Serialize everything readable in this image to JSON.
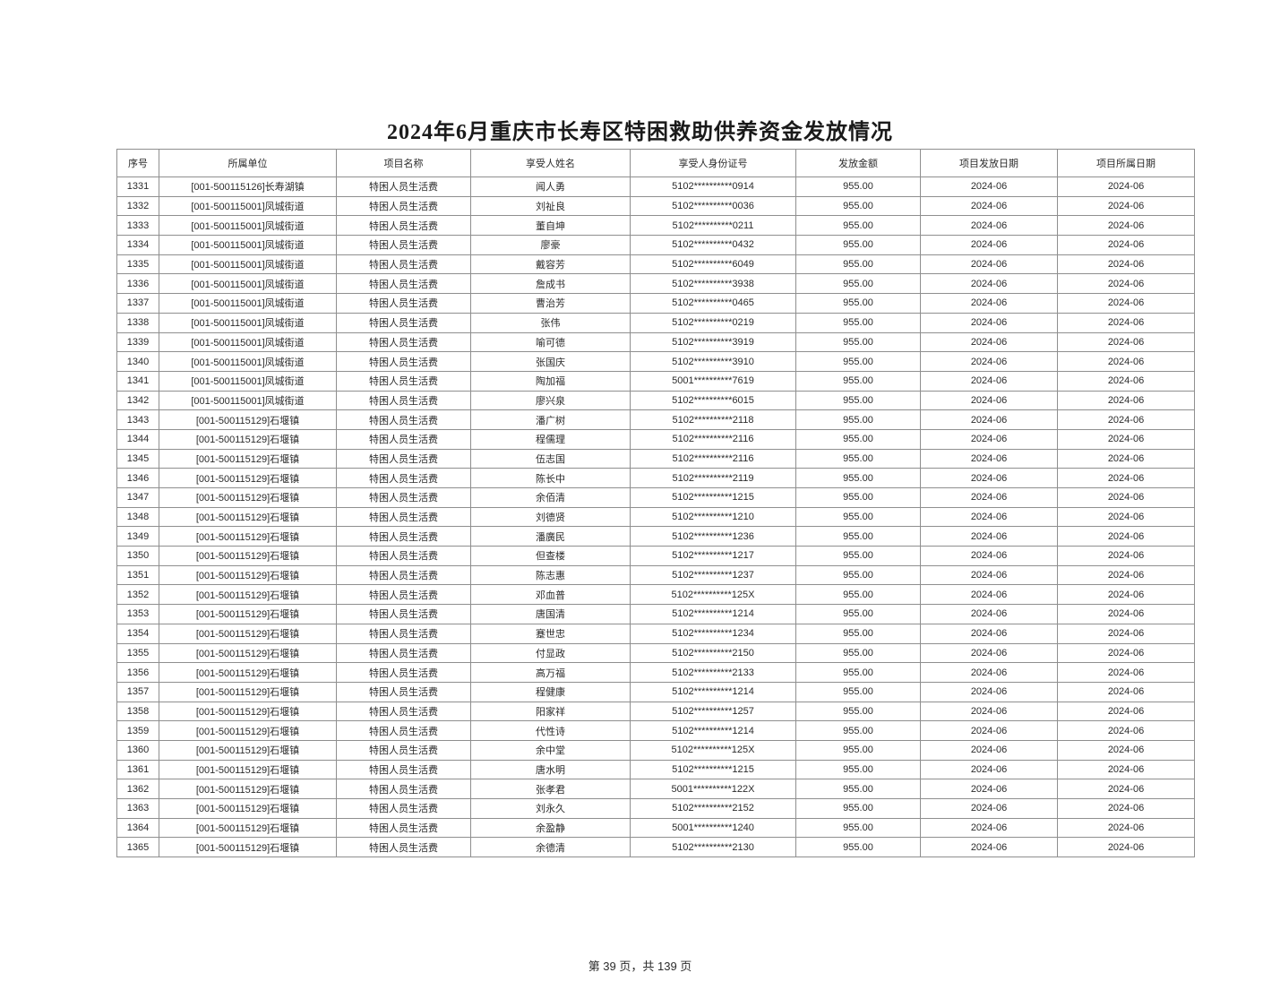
{
  "page": {
    "title": "2024年6月重庆市长寿区特困救助供养资金发放情况",
    "footer": "第 39 页，共 139 页"
  },
  "table": {
    "column_keys": [
      "index",
      "unit",
      "project",
      "name",
      "id",
      "amount",
      "issue",
      "period"
    ],
    "headers": [
      "序号",
      "所属单位",
      "项目名称",
      "享受人姓名",
      "享受人身份证号",
      "发放金额",
      "项目发放日期",
      "项目所属日期"
    ],
    "rows": [
      [
        "1331",
        "[001-500115126]长寿湖镇",
        "特困人员生活费",
        "闻人勇",
        "5102**********0914",
        "955.00",
        "2024-06",
        "2024-06"
      ],
      [
        "1332",
        "[001-500115001]凤城街道",
        "特困人员生活费",
        "刘祉良",
        "5102**********0036",
        "955.00",
        "2024-06",
        "2024-06"
      ],
      [
        "1333",
        "[001-500115001]凤城街道",
        "特困人员生活费",
        "董自坤",
        "5102**********0211",
        "955.00",
        "2024-06",
        "2024-06"
      ],
      [
        "1334",
        "[001-500115001]凤城街道",
        "特困人员生活费",
        "廖豪",
        "5102**********0432",
        "955.00",
        "2024-06",
        "2024-06"
      ],
      [
        "1335",
        "[001-500115001]凤城街道",
        "特困人员生活费",
        "戴容芳",
        "5102**********6049",
        "955.00",
        "2024-06",
        "2024-06"
      ],
      [
        "1336",
        "[001-500115001]凤城街道",
        "特困人员生活费",
        "詹成书",
        "5102**********3938",
        "955.00",
        "2024-06",
        "2024-06"
      ],
      [
        "1337",
        "[001-500115001]凤城街道",
        "特困人员生活费",
        "曹治芳",
        "5102**********0465",
        "955.00",
        "2024-06",
        "2024-06"
      ],
      [
        "1338",
        "[001-500115001]凤城街道",
        "特困人员生活费",
        "张伟",
        "5102**********0219",
        "955.00",
        "2024-06",
        "2024-06"
      ],
      [
        "1339",
        "[001-500115001]凤城街道",
        "特困人员生活费",
        "喻可德",
        "5102**********3919",
        "955.00",
        "2024-06",
        "2024-06"
      ],
      [
        "1340",
        "[001-500115001]凤城街道",
        "特困人员生活费",
        "张国庆",
        "5102**********3910",
        "955.00",
        "2024-06",
        "2024-06"
      ],
      [
        "1341",
        "[001-500115001]凤城街道",
        "特困人员生活费",
        "陶加福",
        "5001**********7619",
        "955.00",
        "2024-06",
        "2024-06"
      ],
      [
        "1342",
        "[001-500115001]凤城街道",
        "特困人员生活费",
        "廖兴泉",
        "5102**********6015",
        "955.00",
        "2024-06",
        "2024-06"
      ],
      [
        "1343",
        "[001-500115129]石堰镇",
        "特困人员生活费",
        "潘广树",
        "5102**********2118",
        "955.00",
        "2024-06",
        "2024-06"
      ],
      [
        "1344",
        "[001-500115129]石堰镇",
        "特困人员生活费",
        "程儒理",
        "5102**********2116",
        "955.00",
        "2024-06",
        "2024-06"
      ],
      [
        "1345",
        "[001-500115129]石堰镇",
        "特困人员生活费",
        "伍志国",
        "5102**********2116",
        "955.00",
        "2024-06",
        "2024-06"
      ],
      [
        "1346",
        "[001-500115129]石堰镇",
        "特困人员生活费",
        "陈长中",
        "5102**********2119",
        "955.00",
        "2024-06",
        "2024-06"
      ],
      [
        "1347",
        "[001-500115129]石堰镇",
        "特困人员生活费",
        "余佰清",
        "5102**********1215",
        "955.00",
        "2024-06",
        "2024-06"
      ],
      [
        "1348",
        "[001-500115129]石堰镇",
        "特困人员生活费",
        "刘德贤",
        "5102**********1210",
        "955.00",
        "2024-06",
        "2024-06"
      ],
      [
        "1349",
        "[001-500115129]石堰镇",
        "特困人员生活费",
        "潘廣民",
        "5102**********1236",
        "955.00",
        "2024-06",
        "2024-06"
      ],
      [
        "1350",
        "[001-500115129]石堰镇",
        "特困人员生活费",
        "但查楼",
        "5102**********1217",
        "955.00",
        "2024-06",
        "2024-06"
      ],
      [
        "1351",
        "[001-500115129]石堰镇",
        "特困人员生活费",
        "陈志惠",
        "5102**********1237",
        "955.00",
        "2024-06",
        "2024-06"
      ],
      [
        "1352",
        "[001-500115129]石堰镇",
        "特困人员生活费",
        "邓血普",
        "5102**********125X",
        "955.00",
        "2024-06",
        "2024-06"
      ],
      [
        "1353",
        "[001-500115129]石堰镇",
        "特困人员生活费",
        "唐国清",
        "5102**********1214",
        "955.00",
        "2024-06",
        "2024-06"
      ],
      [
        "1354",
        "[001-500115129]石堰镇",
        "特困人员生活费",
        "蹇世忠",
        "5102**********1234",
        "955.00",
        "2024-06",
        "2024-06"
      ],
      [
        "1355",
        "[001-500115129]石堰镇",
        "特困人员生活费",
        "付显政",
        "5102**********2150",
        "955.00",
        "2024-06",
        "2024-06"
      ],
      [
        "1356",
        "[001-500115129]石堰镇",
        "特困人员生活费",
        "高万福",
        "5102**********2133",
        "955.00",
        "2024-06",
        "2024-06"
      ],
      [
        "1357",
        "[001-500115129]石堰镇",
        "特困人员生活费",
        "程健康",
        "5102**********1214",
        "955.00",
        "2024-06",
        "2024-06"
      ],
      [
        "1358",
        "[001-500115129]石堰镇",
        "特困人员生活费",
        "阳家祥",
        "5102**********1257",
        "955.00",
        "2024-06",
        "2024-06"
      ],
      [
        "1359",
        "[001-500115129]石堰镇",
        "特困人员生活费",
        "代性诗",
        "5102**********1214",
        "955.00",
        "2024-06",
        "2024-06"
      ],
      [
        "1360",
        "[001-500115129]石堰镇",
        "特困人员生活费",
        "余中堂",
        "5102**********125X",
        "955.00",
        "2024-06",
        "2024-06"
      ],
      [
        "1361",
        "[001-500115129]石堰镇",
        "特困人员生活费",
        "唐水明",
        "5102**********1215",
        "955.00",
        "2024-06",
        "2024-06"
      ],
      [
        "1362",
        "[001-500115129]石堰镇",
        "特困人员生活费",
        "张孝君",
        "5001**********122X",
        "955.00",
        "2024-06",
        "2024-06"
      ],
      [
        "1363",
        "[001-500115129]石堰镇",
        "特困人员生活费",
        "刘永久",
        "5102**********2152",
        "955.00",
        "2024-06",
        "2024-06"
      ],
      [
        "1364",
        "[001-500115129]石堰镇",
        "特困人员生活费",
        "余盈静",
        "5001**********1240",
        "955.00",
        "2024-06",
        "2024-06"
      ],
      [
        "1365",
        "[001-500115129]石堰镇",
        "特困人员生活费",
        "余德清",
        "5102**********2130",
        "955.00",
        "2024-06",
        "2024-06"
      ]
    ]
  }
}
